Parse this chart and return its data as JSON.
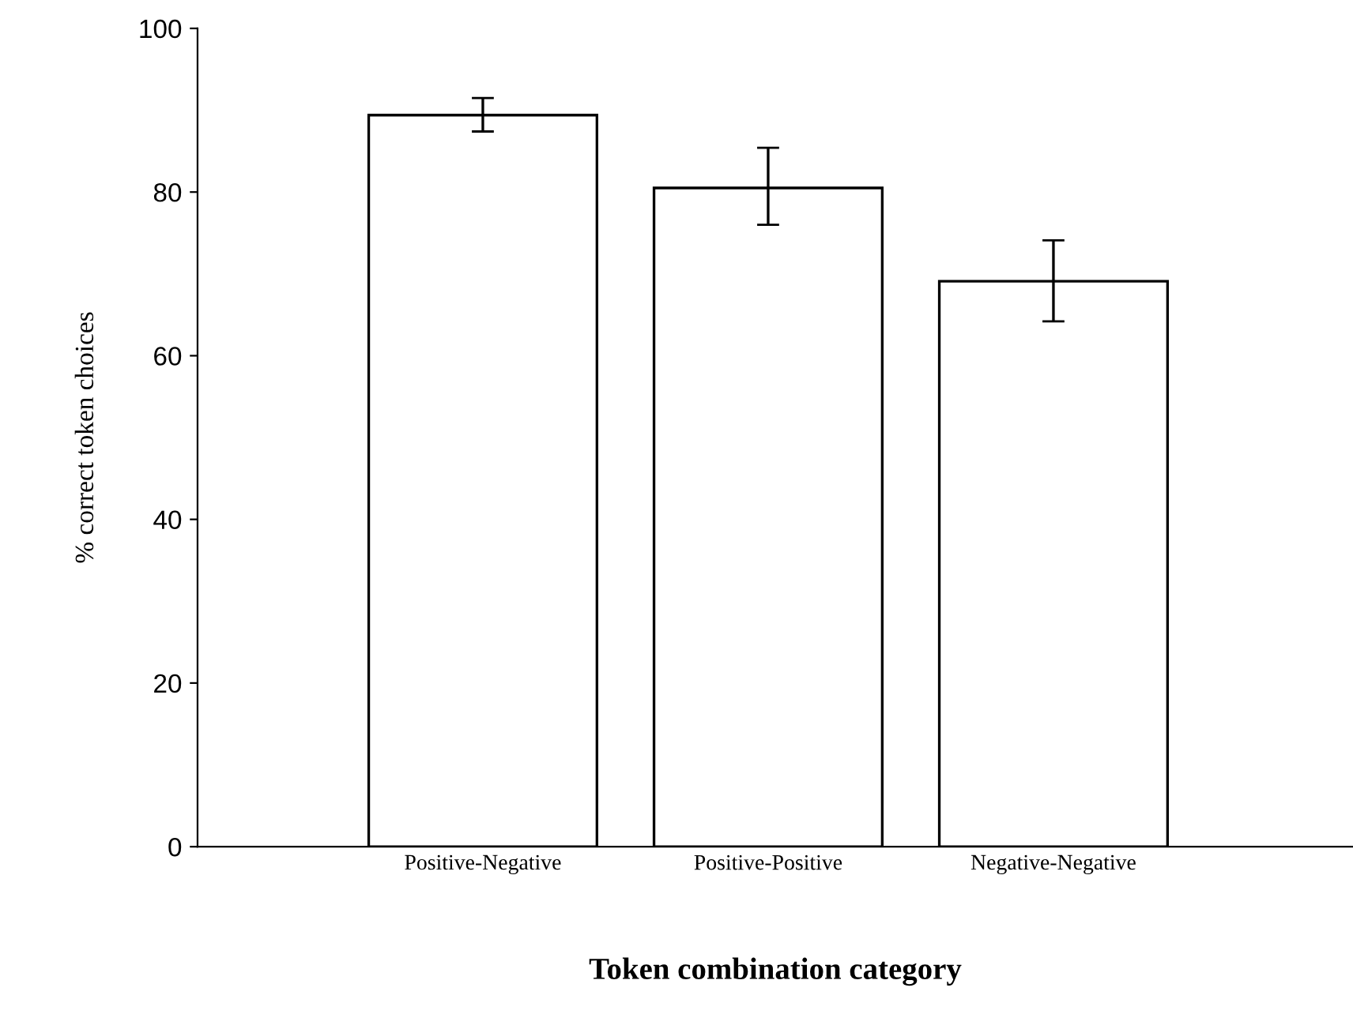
{
  "chart_data": {
    "type": "bar",
    "xlabel": "Token combination category",
    "ylabel": "% correct token choices",
    "categories": [
      "Positive-Negative",
      "Positive-Positive",
      "Negative-Negative"
    ],
    "values": [
      89.4,
      80.5,
      69.1
    ],
    "errors": [
      [
        87.4,
        91.5
      ],
      [
        76.0,
        85.4
      ],
      [
        64.2,
        74.1
      ]
    ],
    "color": "#ffffff",
    "ylim": [
      0,
      100
    ],
    "yticks": [
      0,
      20,
      40,
      60,
      80,
      100
    ],
    "grid": false
  }
}
